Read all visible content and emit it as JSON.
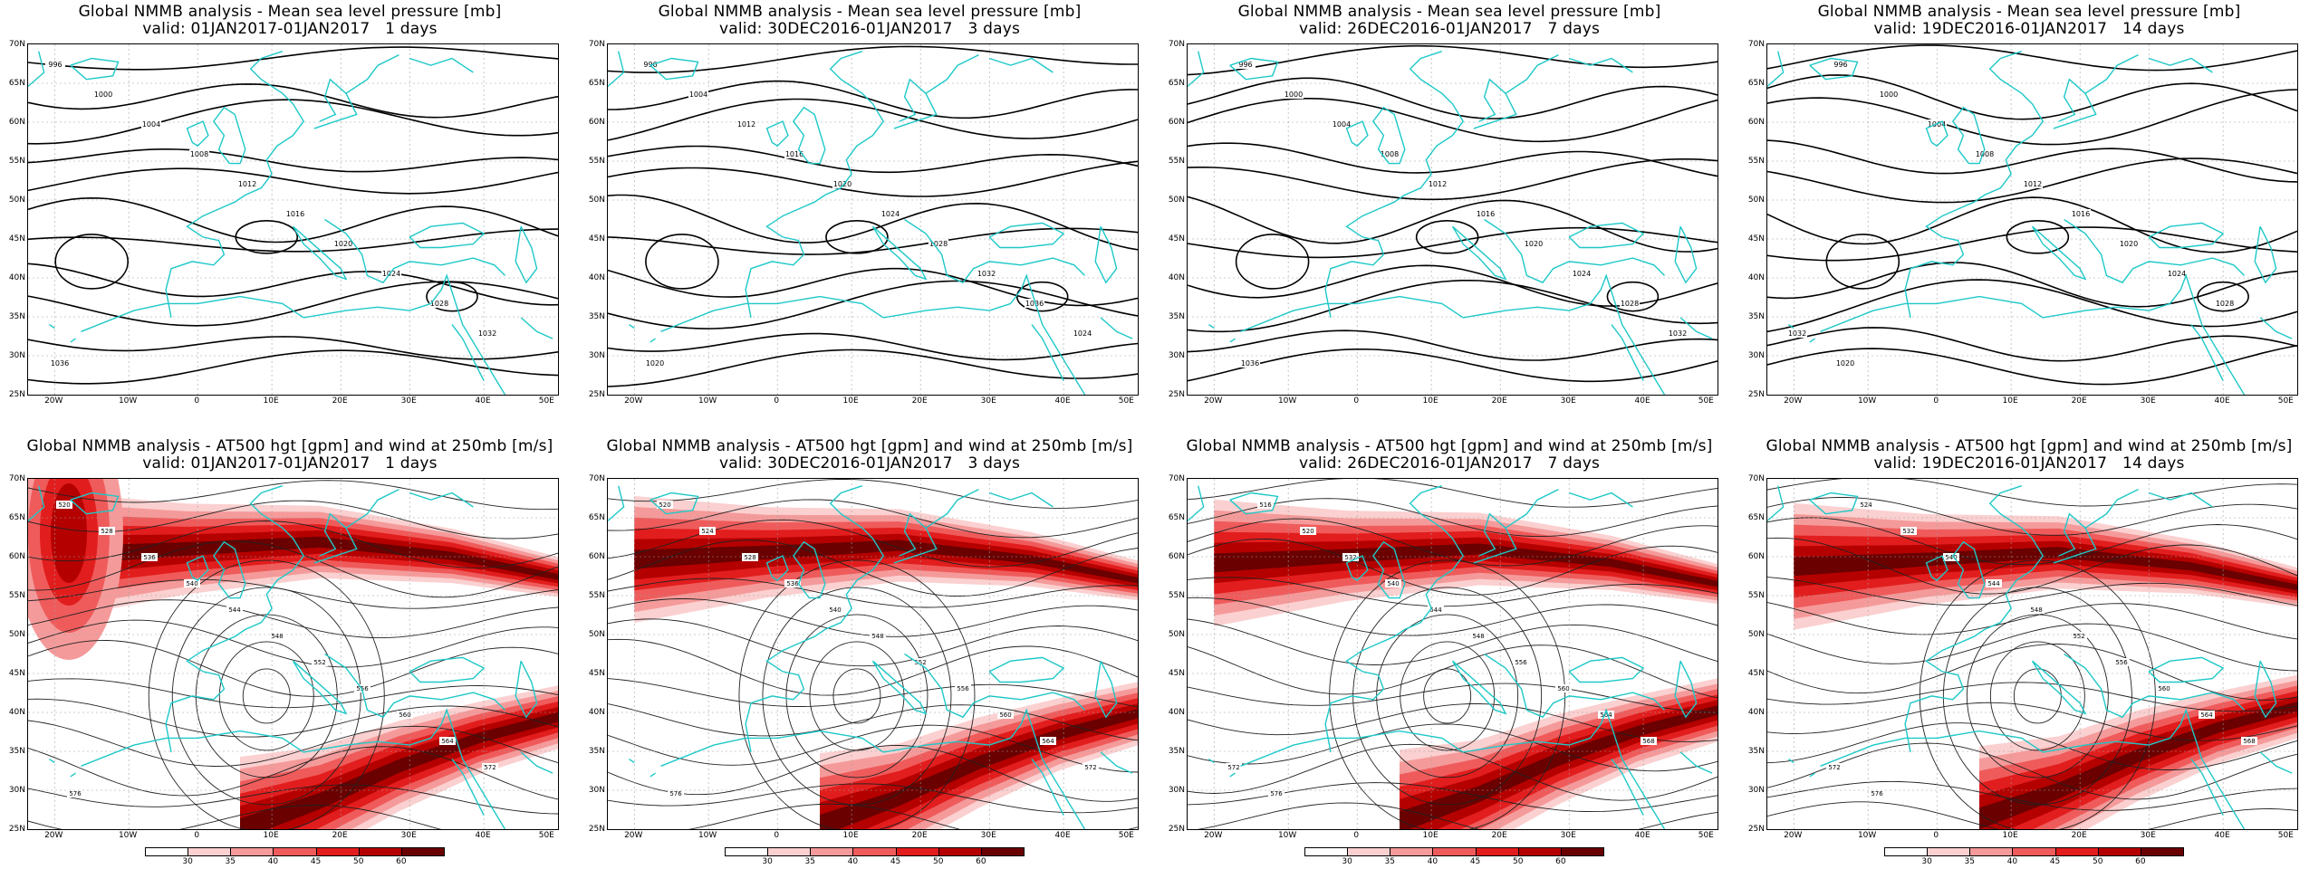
{
  "panels": [
    {
      "title": "Global NMMB analysis - Mean sea level pressure [mb]",
      "subtitle": "valid: 01JAN2017-01JAN2017   1 days",
      "kind": "mslp"
    },
    {
      "title": "Global NMMB analysis - Mean sea level pressure [mb]",
      "subtitle": "valid: 30DEC2016-01JAN2017   3 days",
      "kind": "mslp"
    },
    {
      "title": "Global NMMB analysis - Mean sea level pressure [mb]",
      "subtitle": "valid: 26DEC2016-01JAN2017   7 days",
      "kind": "mslp"
    },
    {
      "title": "Global NMMB analysis - Mean sea level pressure [mb]",
      "subtitle": "valid: 19DEC2016-01JAN2017   14 days",
      "kind": "mslp"
    },
    {
      "title": "Global NMMB analysis - AT500 hgt [gpm] and wind at 250mb [m/s]",
      "subtitle": "valid: 01JAN2017-01JAN2017   1 days",
      "kind": "z500"
    },
    {
      "title": "Global NMMB analysis - AT500 hgt [gpm] and wind at 250mb [m/s]",
      "subtitle": "valid: 30DEC2016-01JAN2017   3 days",
      "kind": "z500"
    },
    {
      "title": "Global NMMB analysis - AT500 hgt [gpm] and wind at 250mb [m/s]",
      "subtitle": "valid: 26DEC2016-01JAN2017   7 days",
      "kind": "z500"
    },
    {
      "title": "Global NMMB analysis - AT500 hgt [gpm] and wind at 250mb [m/s]",
      "subtitle": "valid: 19DEC2016-01JAN2017   14 days",
      "kind": "z500"
    }
  ],
  "lat_labels": [
    "70N",
    "65N",
    "60N",
    "55N",
    "50N",
    "45N",
    "40N",
    "35N",
    "30N",
    "25N"
  ],
  "lon_labels": [
    "20W",
    "10W",
    "0",
    "10E",
    "20E",
    "30E",
    "40E",
    "50E"
  ],
  "colorbar": {
    "ticks": [
      "30",
      "35",
      "40",
      "45",
      "50",
      "60"
    ],
    "colors": [
      "#ffffff",
      "#fbd0d0",
      "#f59a9a",
      "#ef5b5b",
      "#e21d1d",
      "#b50000",
      "#6a0000"
    ]
  },
  "mslp_labels": [
    [
      "996",
      "1000",
      "1004",
      "1008",
      "1012",
      "1016",
      "1020",
      "1024",
      "1028",
      "1032",
      "1036"
    ],
    [
      "996",
      "1004",
      "1012",
      "1016",
      "1020",
      "1024",
      "1028",
      "1032",
      "1036",
      "1024",
      "1020"
    ],
    [
      "996",
      "1000",
      "1004",
      "1008",
      "1012",
      "1016",
      "1020",
      "1024",
      "1028",
      "1032",
      "1036"
    ],
    [
      "996",
      "1000",
      "1004",
      "1008",
      "1012",
      "1016",
      "1020",
      "1024",
      "1028",
      "1032",
      "1020"
    ]
  ],
  "z500_labels": [
    [
      "520",
      "528",
      "536",
      "540",
      "544",
      "548",
      "552",
      "556",
      "560",
      "564",
      "572",
      "576"
    ],
    [
      "520",
      "524",
      "528",
      "536",
      "540",
      "548",
      "552",
      "556",
      "560",
      "564",
      "572",
      "576"
    ],
    [
      "516",
      "520",
      "532",
      "540",
      "544",
      "548",
      "556",
      "560",
      "564",
      "568",
      "572",
      "576"
    ],
    [
      "524",
      "532",
      "540",
      "544",
      "548",
      "552",
      "556",
      "560",
      "564",
      "568",
      "572",
      "576"
    ]
  ],
  "colors": {
    "coast": "#1ec8c8",
    "contour": "#000000",
    "grid": "#a0a0a0"
  }
}
